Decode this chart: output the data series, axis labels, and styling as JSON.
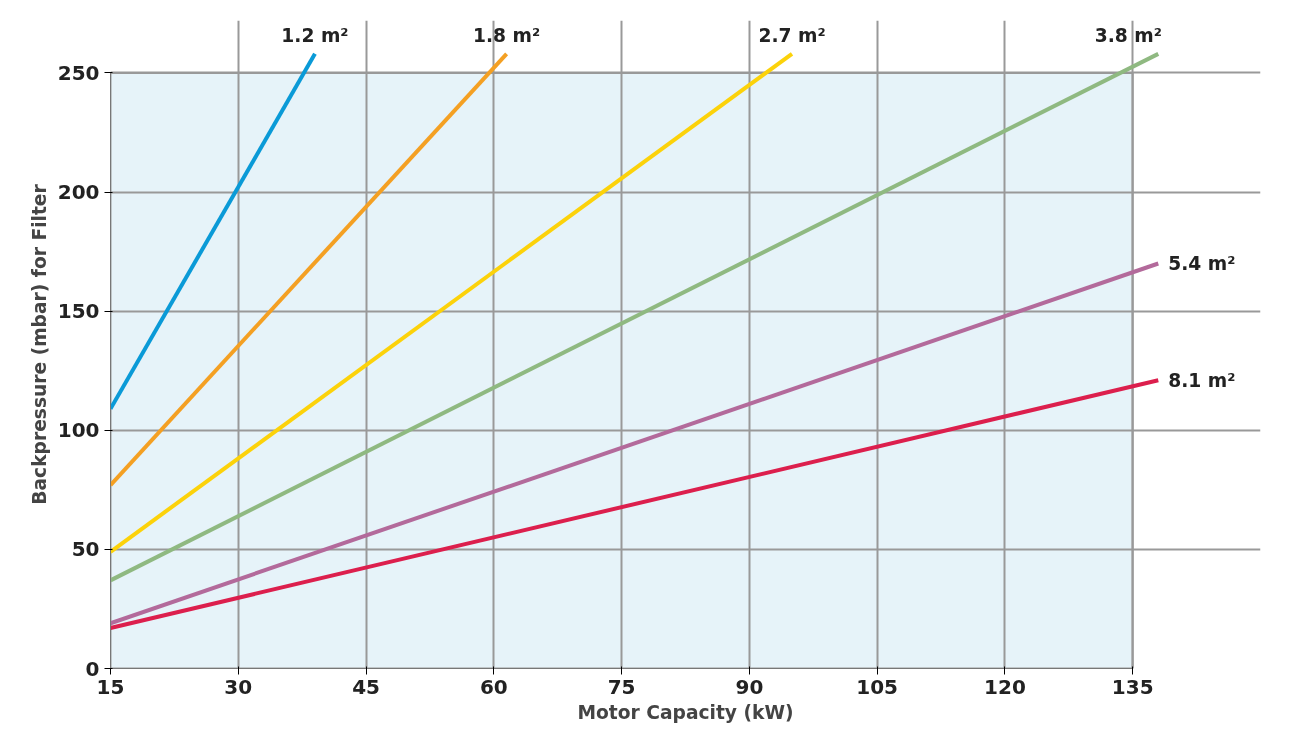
{
  "chart_data": {
    "type": "line",
    "xlabel": "Motor Capacity (kW)",
    "ylabel": "Backpressure (mbar) for Filter",
    "xlim": [
      15,
      150
    ],
    "ylim": [
      0,
      272
    ],
    "xticks": [
      15,
      30,
      45,
      60,
      75,
      90,
      105,
      120,
      135
    ],
    "yticks": [
      0,
      50,
      100,
      150,
      200,
      250
    ],
    "grid": true,
    "bands": [
      {
        "axis": "x",
        "from": 15,
        "to": 135,
        "color": "#e6f3f9"
      }
    ],
    "legend": false,
    "line_style": "solid",
    "marker": "none",
    "series": [
      {
        "name": "1.2 m²",
        "color": "#0a9ad7",
        "x": [
          15,
          39
        ],
        "values": [
          109,
          258
        ]
      },
      {
        "name": "1.8 m²",
        "color": "#f4a023",
        "x": [
          15,
          61.5
        ],
        "values": [
          77,
          258
        ]
      },
      {
        "name": "2.7 m²",
        "color": "#fcd20a",
        "x": [
          15,
          95
        ],
        "values": [
          49,
          258
        ]
      },
      {
        "name": "3.8 m²",
        "color": "#8fb981",
        "x": [
          15,
          138
        ],
        "values": [
          37,
          258
        ]
      },
      {
        "name": "5.4 m²",
        "color": "#b36a9b",
        "x": [
          15,
          138
        ],
        "values": [
          19,
          170
        ]
      },
      {
        "name": "8.1 m²",
        "color": "#dc1f4d",
        "x": [
          15,
          138
        ],
        "values": [
          17,
          121
        ]
      }
    ]
  }
}
